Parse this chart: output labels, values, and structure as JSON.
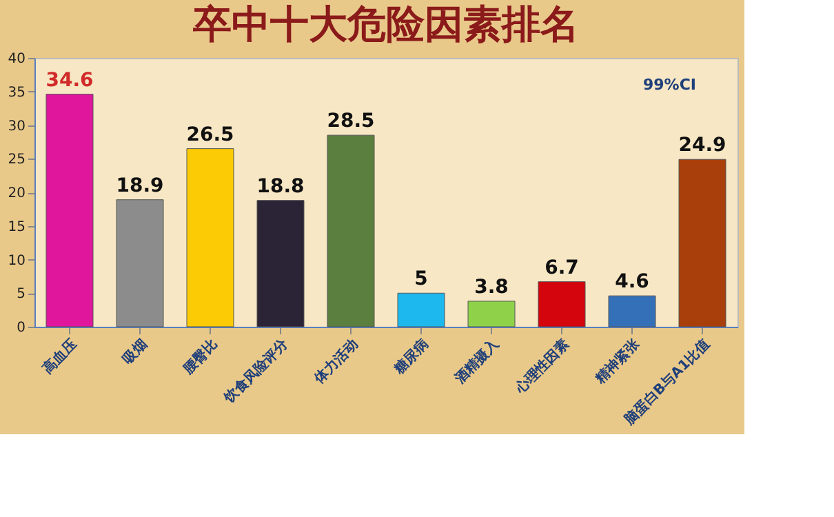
{
  "chart_data": {
    "type": "bar",
    "title": "卒中十大危险因素排名",
    "categories": [
      "高血压",
      "吸烟",
      "腰臀比",
      "饮食风险评分",
      "体力活动",
      "糖尿病",
      "酒精摄入",
      "心理性因素",
      "精神紧张",
      "脑蛋白B与A1比值"
    ],
    "values": [
      34.6,
      18.9,
      26.5,
      18.8,
      28.5,
      5,
      3.8,
      6.7,
      4.6,
      24.9
    ],
    "colors": [
      "#e0169c",
      "#8c8c8c",
      "#fccb05",
      "#2a2436",
      "#5b7f3e",
      "#1cb8ee",
      "#8fd24a",
      "#d4050d",
      "#3470b8",
      "#a9400b"
    ],
    "ylim": [
      0,
      40
    ],
    "yticks": [
      0,
      5,
      10,
      15,
      20,
      25,
      30,
      35,
      40
    ],
    "data_labels": true,
    "grid": false,
    "annotations": [
      "99%CI"
    ]
  }
}
